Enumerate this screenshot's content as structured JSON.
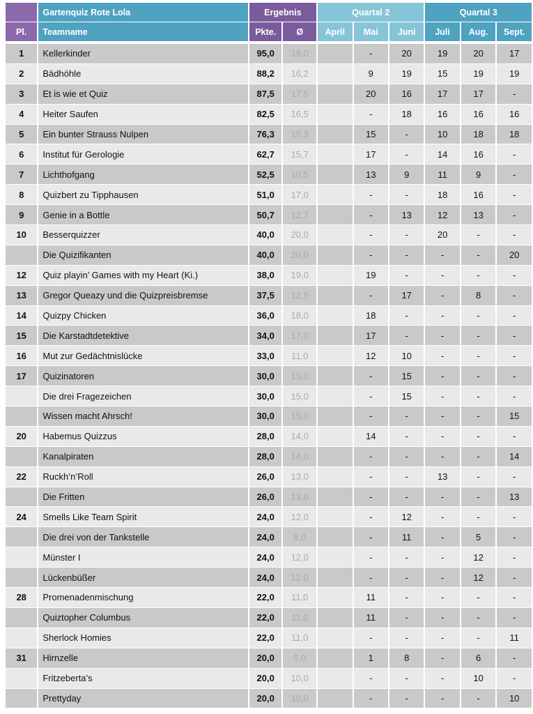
{
  "header": {
    "title": "Gartenquiz Rote Lola",
    "ergebnis": "Ergebnis",
    "quartal2": "Quartal 2",
    "quartal3": "Quartal 3",
    "columns": [
      "Pl.",
      "Teamname",
      "Pkte.",
      "Ø",
      "April",
      "Mai",
      "Juni",
      "Juli",
      "Aug.",
      "Sept."
    ]
  },
  "colors": {
    "purple": "#8a6aaa",
    "teal": "#4fa2c0",
    "light_teal": "#86c4d8",
    "row_dark": "#c9c9c9",
    "row_light": "#e9e9e9"
  },
  "rows": [
    [
      "1",
      "Kellerkinder",
      "95,0",
      "19,0",
      "",
      "-",
      "20",
      "19",
      "20",
      "17"
    ],
    [
      "2",
      "Bädhöhle",
      "88,2",
      "16,2",
      "",
      "9",
      "19",
      "15",
      "19",
      "19"
    ],
    [
      "3",
      "Et is wie et Quiz",
      "87,5",
      "17,5",
      "",
      "20",
      "16",
      "17",
      "17",
      "-"
    ],
    [
      "4",
      "Heiter Saufen",
      "82,5",
      "16,5",
      "",
      "-",
      "18",
      "16",
      "16",
      "16"
    ],
    [
      "5",
      "Ein bunter Strauss Nulpen",
      "76,3",
      "15,3",
      "",
      "15",
      "-",
      "10",
      "18",
      "18"
    ],
    [
      "6",
      "Institut für Gerologie",
      "62,7",
      "15,7",
      "",
      "17",
      "-",
      "14",
      "16",
      "-"
    ],
    [
      "7",
      "Lichthofgang",
      "52,5",
      "10,5",
      "",
      "13",
      "9",
      "11",
      "9",
      "-"
    ],
    [
      "8",
      "Quizbert zu Tipphausen",
      "51,0",
      "17,0",
      "",
      "-",
      "-",
      "18",
      "16",
      "-"
    ],
    [
      "9",
      "Genie in a Bottle",
      "50,7",
      "12,7",
      "",
      "-",
      "13",
      "12",
      "13",
      "-"
    ],
    [
      "10",
      " Besserquizzer",
      "40,0",
      "20,0",
      "",
      "-",
      "-",
      "20",
      "-",
      "-"
    ],
    [
      "",
      "Die Quizifikanten",
      "40,0",
      "20,0",
      "",
      "-",
      "-",
      "-",
      "-",
      "20"
    ],
    [
      "12",
      "Quiz playin’ Games with my Heart (Ki.)",
      "38,0",
      "19,0",
      "",
      "19",
      "-",
      "-",
      "-",
      "-"
    ],
    [
      "13",
      "Gregor Queazy und die Quizpreisbremse",
      "37,5",
      "12,5",
      "",
      "-",
      "17",
      "-",
      "8",
      "-"
    ],
    [
      "14",
      "Quizpy Chicken",
      "36,0",
      "18,0",
      "",
      "18",
      "-",
      "-",
      "-",
      "-"
    ],
    [
      "15",
      "Die Karstadtdetektive",
      "34,0",
      "17,0",
      "",
      "17",
      "-",
      "-",
      "-",
      "-"
    ],
    [
      "16",
      "Mut zur Gedächtnislücke",
      "33,0",
      "11,0",
      "",
      "12",
      "10",
      "-",
      "-",
      "-"
    ],
    [
      "17",
      "Quizinatoren",
      "30,0",
      "15,0",
      "",
      "-",
      "15",
      "-",
      "-",
      "-"
    ],
    [
      "",
      "Die drei Fragezeichen",
      "30,0",
      "15,0",
      "",
      "-",
      "15",
      "-",
      "-",
      "-"
    ],
    [
      "",
      "Wissen macht Ahrsch!",
      "30,0",
      "15,0",
      "",
      "-",
      "-",
      "-",
      "-",
      "15"
    ],
    [
      "20",
      "Habemus Quizzus",
      "28,0",
      "14,0",
      "",
      "14",
      "-",
      "-",
      "-",
      "-"
    ],
    [
      "",
      "Kanalpiraten",
      "28,0",
      "14,0",
      "",
      "-",
      "-",
      "-",
      "-",
      "14"
    ],
    [
      "22",
      "Ruckh’n’Roll",
      "26,0",
      "13,0",
      "",
      "-",
      "-",
      "13",
      "-",
      "-"
    ],
    [
      "",
      "Die Fritten",
      "26,0",
      "13,0",
      "",
      "-",
      "-",
      "-",
      "-",
      "13"
    ],
    [
      "24",
      "Smells Like Team Spirit",
      "24,0",
      "12,0",
      "",
      "-",
      "12",
      "-",
      "-",
      "-"
    ],
    [
      "",
      "Die drei von der Tankstelle",
      "24,0",
      "8,0",
      "",
      "-",
      "11",
      "-",
      "5",
      "-"
    ],
    [
      "",
      "Münster I",
      "24,0",
      "12,0",
      "",
      "-",
      "-",
      "-",
      "12",
      "-"
    ],
    [
      "",
      "Lückenbüßer",
      "24,0",
      "12,0",
      "",
      "-",
      "-",
      "-",
      "12",
      "-"
    ],
    [
      "28",
      "Promenadenmischung",
      "22,0",
      "11,0",
      "",
      "11",
      "-",
      "-",
      "-",
      "-"
    ],
    [
      "",
      "Quiztopher Columbus",
      "22,0",
      "11,0",
      "",
      "11",
      "-",
      "-",
      "-",
      "-"
    ],
    [
      "",
      "Sherlock Homies",
      "22,0",
      "11,0",
      "",
      "-",
      "-",
      "-",
      "-",
      "11"
    ],
    [
      "31",
      "Hirnzelle",
      "20,0",
      "5,0",
      "",
      "1",
      "8",
      "-",
      "6",
      "-"
    ],
    [
      "",
      "Fritzeberta’s",
      "20,0",
      "10,0",
      "",
      "-",
      "-",
      "-",
      "10",
      "-"
    ],
    [
      "",
      "Prettyday",
      "20,0",
      "10,0",
      "",
      "-",
      "-",
      "-",
      "-",
      "10"
    ]
  ]
}
